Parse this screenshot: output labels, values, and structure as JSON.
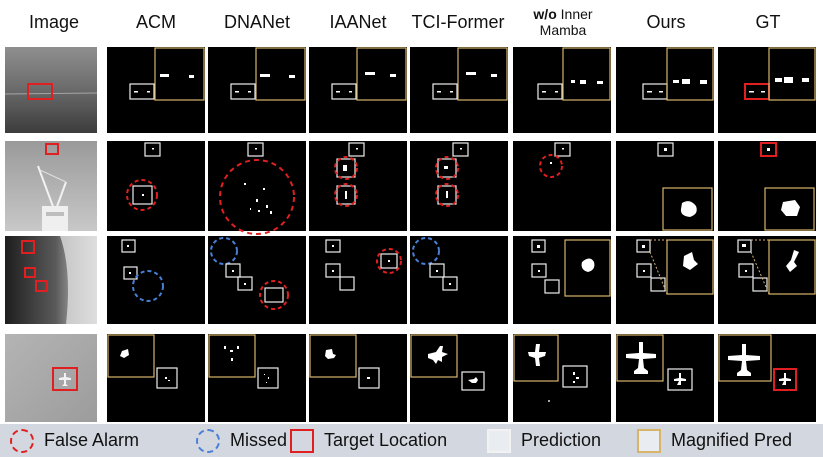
{
  "headers": {
    "image": "Image",
    "acm": "ACM",
    "dnanet": "DNANet",
    "iaanet": "IAANet",
    "tciformer": "TCI-Former",
    "wo_prefix": "w/o",
    "wo_line1_rest": " Inner",
    "wo_line2": "Mamba",
    "ours": "Ours",
    "gt": "GT"
  },
  "legend": {
    "false_alarm": "False Alarm",
    "missed": "Missed",
    "target_location": "Target Location",
    "prediction": "Prediction",
    "magnified_pred": "Magnified Pred"
  },
  "colors": {
    "false_alarm": "#e02020",
    "missed": "#4a7fd6",
    "target_location": "#e02020",
    "prediction": "#f2f2f2",
    "magnified_pred": "#d6b46a",
    "legend_bg": "#d3d8e0"
  }
}
